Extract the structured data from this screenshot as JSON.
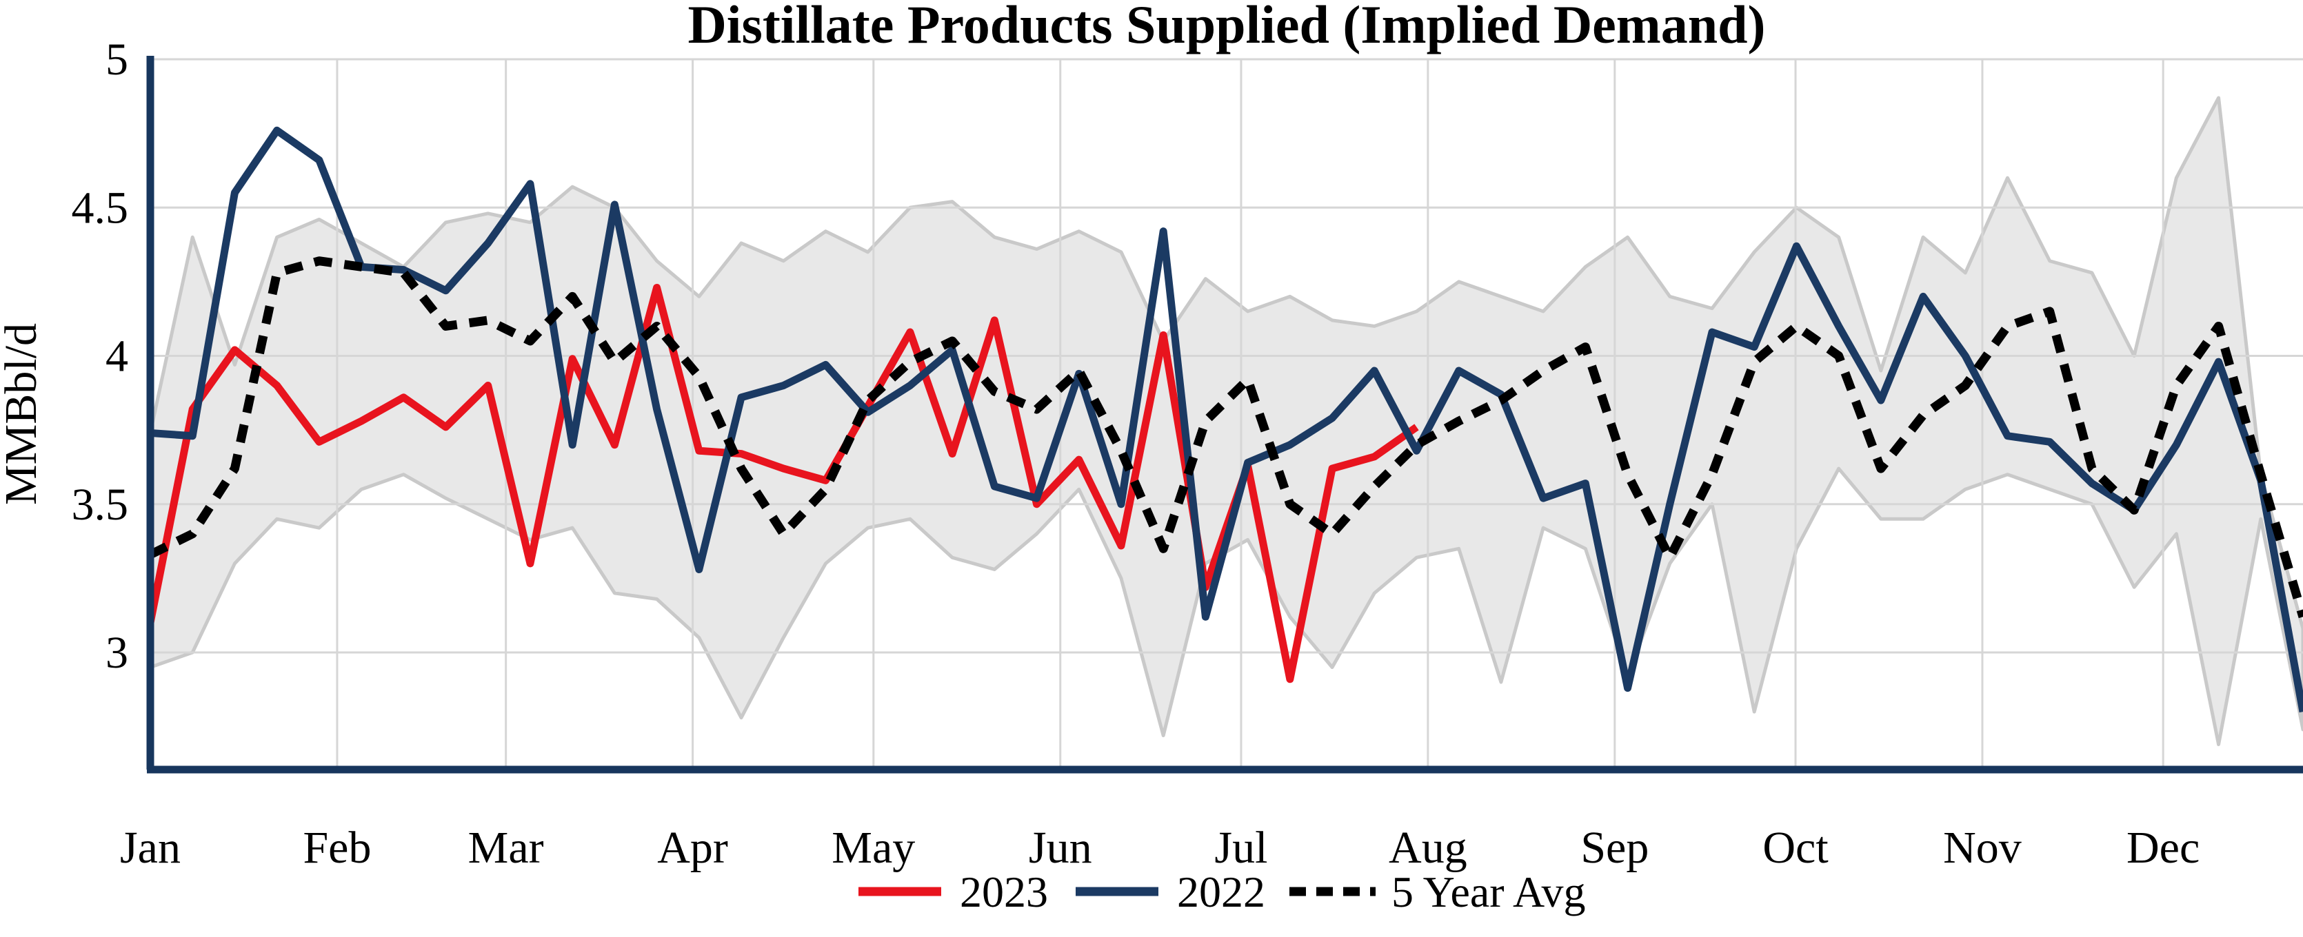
{
  "chart_data": {
    "type": "line",
    "title": "Distillate Products Supplied (Implied Demand)",
    "ylabel": "MMBbl/d",
    "xlabel": "",
    "ylim": [
      2.6,
      5.0
    ],
    "yticks": [
      {
        "value": 3.0,
        "label": "3"
      },
      {
        "value": 3.5,
        "label": "3.5"
      },
      {
        "value": 4.0,
        "label": "4"
      },
      {
        "value": 4.5,
        "label": "4.5"
      },
      {
        "value": 5.0,
        "label": "5"
      }
    ],
    "months": [
      {
        "label": "Jan",
        "day": 0
      },
      {
        "label": "Feb",
        "day": 31
      },
      {
        "label": "Mar",
        "day": 59
      },
      {
        "label": "Apr",
        "day": 90
      },
      {
        "label": "May",
        "day": 120
      },
      {
        "label": "Jun",
        "day": 151
      },
      {
        "label": "Jul",
        "day": 181
      },
      {
        "label": "Aug",
        "day": 212
      },
      {
        "label": "Sep",
        "day": 243
      },
      {
        "label": "Oct",
        "day": 273
      },
      {
        "label": "Nov",
        "day": 304
      },
      {
        "label": "Dec",
        "day": 334
      }
    ],
    "weeks_per_year": 52,
    "grid_on": true,
    "legend_position": "bottom-center",
    "colors": {
      "red_2023": "#e8141e",
      "navy_2022": "#1b3a63",
      "avg_dashed": "#000000",
      "band_fill": "#e8e8e8",
      "band_edge": "#c9c9c9",
      "gridline": "#d6d6d6",
      "axis_spine": "#17365d"
    },
    "range_band": {
      "name": "5 Year Range",
      "max": [
        3.74,
        4.4,
        3.97,
        4.4,
        4.46,
        4.38,
        4.3,
        4.45,
        4.48,
        4.45,
        4.57,
        4.5,
        4.32,
        4.2,
        4.38,
        4.32,
        4.42,
        4.35,
        4.5,
        4.52,
        4.4,
        4.36,
        4.42,
        4.35,
        4.05,
        4.26,
        4.15,
        4.2,
        4.12,
        4.1,
        4.15,
        4.25,
        4.2,
        4.15,
        4.3,
        4.4,
        4.2,
        4.16,
        4.35,
        4.5,
        4.4,
        3.95,
        4.4,
        4.28,
        4.6,
        4.32,
        4.28,
        4.0,
        4.6,
        4.87,
        3.6,
        3.08
      ],
      "min": [
        2.95,
        3.0,
        3.3,
        3.45,
        3.42,
        3.55,
        3.6,
        3.52,
        3.45,
        3.38,
        3.42,
        3.2,
        3.18,
        3.05,
        2.78,
        3.05,
        3.3,
        3.42,
        3.45,
        3.32,
        3.28,
        3.4,
        3.55,
        3.25,
        2.72,
        3.3,
        3.38,
        3.12,
        2.95,
        3.2,
        3.32,
        3.35,
        2.9,
        3.42,
        3.35,
        2.92,
        3.3,
        3.5,
        2.8,
        3.35,
        3.62,
        3.45,
        3.45,
        3.55,
        3.6,
        3.55,
        3.5,
        3.22,
        3.4,
        2.69,
        3.45,
        2.74
      ]
    },
    "series": [
      {
        "name": "2023",
        "style": "solid",
        "color_key": "red_2023",
        "values": [
          3.1,
          3.82,
          4.02,
          3.9,
          3.71,
          3.78,
          3.86,
          3.76,
          3.9,
          3.3,
          3.99,
          3.7,
          4.23,
          3.68,
          3.67,
          3.62,
          3.58,
          3.83,
          4.08,
          3.67,
          4.12,
          3.5,
          3.65,
          3.36,
          4.07,
          3.22,
          3.63,
          2.91,
          3.62,
          3.66,
          3.76
        ]
      },
      {
        "name": "2022",
        "style": "solid",
        "color_key": "navy_2022",
        "values": [
          3.74,
          3.73,
          4.55,
          4.76,
          4.66,
          4.3,
          4.29,
          4.22,
          4.38,
          4.58,
          3.7,
          4.51,
          3.82,
          3.28,
          3.86,
          3.9,
          3.97,
          3.81,
          3.9,
          4.02,
          3.56,
          3.52,
          3.94,
          3.5,
          4.42,
          3.12,
          3.64,
          3.7,
          3.79,
          3.95,
          3.68,
          3.95,
          3.87,
          3.52,
          3.57,
          2.88,
          3.5,
          4.08,
          4.03,
          4.37,
          4.1,
          3.85,
          4.2,
          4.0,
          3.73,
          3.71,
          3.57,
          3.48,
          3.7,
          3.98,
          3.58,
          2.8
        ]
      },
      {
        "name": "5 Year Avg",
        "style": "dashed",
        "color_key": "avg_dashed",
        "values": [
          3.33,
          3.4,
          3.62,
          4.28,
          4.32,
          4.3,
          4.28,
          4.1,
          4.12,
          4.05,
          4.2,
          3.98,
          4.1,
          3.93,
          3.62,
          3.4,
          3.55,
          3.85,
          3.98,
          4.05,
          3.88,
          3.82,
          3.95,
          3.68,
          3.35,
          3.78,
          3.92,
          3.5,
          3.4,
          3.56,
          3.7,
          3.78,
          3.85,
          3.95,
          4.03,
          3.6,
          3.32,
          3.6,
          3.98,
          4.1,
          4.0,
          3.62,
          3.8,
          3.9,
          4.1,
          4.15,
          3.62,
          3.48,
          3.9,
          4.1,
          3.6,
          3.12
        ]
      }
    ],
    "legend": [
      {
        "label": "2023"
      },
      {
        "label": "2022"
      },
      {
        "label": "5 Year Avg"
      }
    ]
  }
}
